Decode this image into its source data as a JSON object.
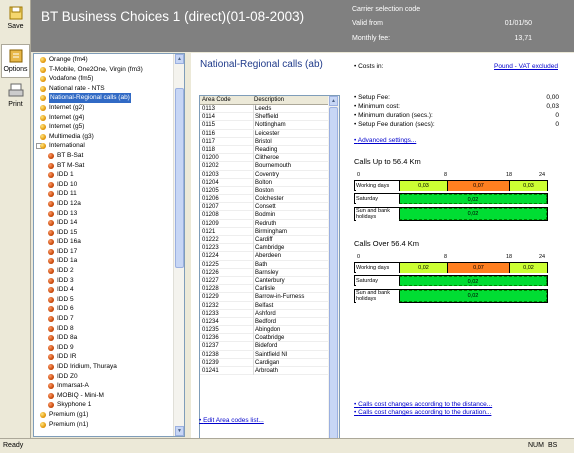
{
  "toolbar": {
    "save": "Save",
    "options": "Options",
    "print": "Print"
  },
  "header": {
    "title": "BT  Business Choices 1 (direct)(01-08-2003)",
    "carrier_label": "Carrier selection code",
    "valid_from_label": "Valid from",
    "valid_from": "01/01/50",
    "monthly_fee_label": "Monthly fee:",
    "monthly_fee": "13,71"
  },
  "tree": [
    {
      "label": "Orange (fm4)",
      "level": 0
    },
    {
      "label": "T-Mobile, One2One, Virgin (fm3)",
      "level": 0
    },
    {
      "label": "Vodafone (fm5)",
      "level": 0
    },
    {
      "label": "National rate - NTS",
      "level": 0
    },
    {
      "label": "National-Regional calls (ab)",
      "level": 0,
      "selected": true
    },
    {
      "label": "Internet (g2)",
      "level": 0
    },
    {
      "label": "Internet (g4)",
      "level": 0
    },
    {
      "label": "Internet (g5)",
      "level": 0
    },
    {
      "label": "Multimedia (g3)",
      "level": 0
    },
    {
      "label": "International",
      "level": 0,
      "expanded": true
    },
    {
      "label": "BT B-Sat",
      "level": 1
    },
    {
      "label": "BT M-Sat",
      "level": 1
    },
    {
      "label": "IDD 1",
      "level": 1
    },
    {
      "label": "IDD 10",
      "level": 1
    },
    {
      "label": "IDD 11",
      "level": 1
    },
    {
      "label": "IDD 12a",
      "level": 1
    },
    {
      "label": "IDD 13",
      "level": 1
    },
    {
      "label": "IDD 14",
      "level": 1
    },
    {
      "label": "IDD 15",
      "level": 1
    },
    {
      "label": "IDD 16a",
      "level": 1
    },
    {
      "label": "IDD 17",
      "level": 1
    },
    {
      "label": "IDD 1a",
      "level": 1
    },
    {
      "label": "IDD 2",
      "level": 1
    },
    {
      "label": "IDD 3",
      "level": 1
    },
    {
      "label": "IDD 4",
      "level": 1
    },
    {
      "label": "IDD 5",
      "level": 1
    },
    {
      "label": "IDD 6",
      "level": 1
    },
    {
      "label": "IDD 7",
      "level": 1
    },
    {
      "label": "IDD 8",
      "level": 1
    },
    {
      "label": "IDD 8a",
      "level": 1
    },
    {
      "label": "IDD 9",
      "level": 1
    },
    {
      "label": "IDD IR",
      "level": 1
    },
    {
      "label": "IDD Iridium, Thuraya",
      "level": 1
    },
    {
      "label": "IDD Z0",
      "level": 1
    },
    {
      "label": "Inmarsat-A",
      "level": 1
    },
    {
      "label": "MOBIQ - Mini-M",
      "level": 1
    },
    {
      "label": "Skyphone 1",
      "level": 1
    },
    {
      "label": "Premium (g1)",
      "level": 0
    },
    {
      "label": "Premium (n1)",
      "level": 0
    }
  ],
  "main": {
    "title": "National-Regional calls (ab)",
    "col_code": "Area Code",
    "col_desc": "Description",
    "edit_link": "Edit Area codes list...",
    "rows": [
      [
        "0113",
        "Leeds"
      ],
      [
        "0114",
        "Sheffield"
      ],
      [
        "0115",
        "Nottingham"
      ],
      [
        "0116",
        "Leicester"
      ],
      [
        "0117",
        "Bristol"
      ],
      [
        "0118",
        "Reading"
      ],
      [
        "01200",
        "Clitheroe"
      ],
      [
        "01202",
        "Bournemouth"
      ],
      [
        "01203",
        "Coventry"
      ],
      [
        "01204",
        "Bolton"
      ],
      [
        "01205",
        "Boston"
      ],
      [
        "01206",
        "Colchester"
      ],
      [
        "01207",
        "Consett"
      ],
      [
        "01208",
        "Bodmin"
      ],
      [
        "01209",
        "Redruth"
      ],
      [
        "0121",
        "Birmingham"
      ],
      [
        "01222",
        "Cardiff"
      ],
      [
        "01223",
        "Cambridge"
      ],
      [
        "01224",
        "Aberdeen"
      ],
      [
        "01225",
        "Bath"
      ],
      [
        "01226",
        "Barnsley"
      ],
      [
        "01227",
        "Canterbury"
      ],
      [
        "01228",
        "Carlisle"
      ],
      [
        "01229",
        "Barrow-in-Furness"
      ],
      [
        "01232",
        "Belfast"
      ],
      [
        "01233",
        "Ashford"
      ],
      [
        "01234",
        "Bedford"
      ],
      [
        "01235",
        "Abingdon"
      ],
      [
        "01236",
        "Coatbridge"
      ],
      [
        "01237",
        "Bideford"
      ],
      [
        "01238",
        "Saintfield NI"
      ],
      [
        "01239",
        "Cardigan"
      ],
      [
        "01241",
        "Arbroath"
      ]
    ]
  },
  "right": {
    "costs_in_label": "Costs in:",
    "costs_in_value": "Pound - VAT excluded",
    "fees": [
      {
        "label": "Setup Fee:",
        "value": "0,00"
      },
      {
        "label": "Minimum cost:",
        "value": "0,03"
      },
      {
        "label": "Minimum duration (secs.):",
        "value": "0"
      },
      {
        "label": "Setup Fee duration (secs):",
        "value": "0"
      }
    ],
    "advanced": "Advanced settings...",
    "sec1": "Calls Up to 56.4 Km",
    "sec2": "Calls Over 56.4 Km",
    "axis": [
      "0",
      "8",
      "18",
      "24"
    ],
    "rows": [
      {
        "label": "Working days",
        "cells": [
          "0,03",
          "0,07",
          "0,03"
        ]
      },
      {
        "label": "Saturday",
        "cells": [
          "0,02"
        ]
      },
      {
        "label": "Sun and bank holidays",
        "cells": [
          "0,02"
        ]
      }
    ],
    "rows2": [
      {
        "label": "Working days",
        "cells": [
          "0,02",
          "0,07",
          "0,02"
        ]
      },
      {
        "label": "Saturday",
        "cells": [
          "0,02"
        ]
      },
      {
        "label": "Sun and bank holidays",
        "cells": [
          "0,02"
        ]
      }
    ],
    "note1": "Calls cost changes according to the distance...",
    "note2": "Calls cost changes according to the duration..."
  },
  "status": {
    "ready": "Ready",
    "num": "NUM",
    "bs": "BS"
  }
}
